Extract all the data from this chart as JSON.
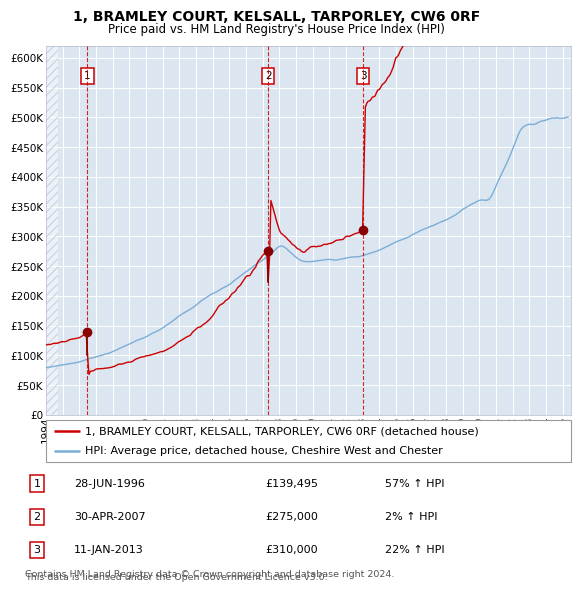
{
  "title": "1, BRAMLEY COURT, KELSALL, TARPORLEY, CW6 0RF",
  "subtitle": "Price paid vs. HM Land Registry's House Price Index (HPI)",
  "legend_line1": "1, BRAMLEY COURT, KELSALL, TARPORLEY, CW6 0RF (detached house)",
  "legend_line2": "HPI: Average price, detached house, Cheshire West and Chester",
  "footer1": "Contains HM Land Registry data © Crown copyright and database right 2024.",
  "footer2": "This data is licensed under the Open Government Licence v3.0.",
  "transactions": [
    {
      "num": 1,
      "date": "28-JUN-1996",
      "price": 139495,
      "price_str": "£139,495",
      "pct": "57%",
      "dir": "↑"
    },
    {
      "num": 2,
      "date": "30-APR-2007",
      "price": 275000,
      "price_str": "£275,000",
      "pct": "2%",
      "dir": "↑"
    },
    {
      "num": 3,
      "date": "11-JAN-2013",
      "price": 310000,
      "price_str": "£310,000",
      "pct": "22%",
      "dir": "↑"
    }
  ],
  "transaction_dates_decimal": [
    1996.49,
    2007.33,
    2013.03
  ],
  "transaction_prices": [
    139495,
    275000,
    310000
  ],
  "ylim": [
    0,
    620000
  ],
  "yticks": [
    0,
    50000,
    100000,
    150000,
    200000,
    250000,
    300000,
    350000,
    400000,
    450000,
    500000,
    550000,
    600000
  ],
  "ytick_labels": [
    "£0",
    "£50K",
    "£100K",
    "£150K",
    "£200K",
    "£250K",
    "£300K",
    "£350K",
    "£400K",
    "£450K",
    "£500K",
    "£550K",
    "£600K"
  ],
  "xlim_start": 1994.0,
  "xlim_end": 2025.5,
  "xticks": [
    1994,
    1995,
    1996,
    1997,
    1998,
    1999,
    2000,
    2001,
    2002,
    2003,
    2004,
    2005,
    2006,
    2007,
    2008,
    2009,
    2010,
    2011,
    2012,
    2013,
    2014,
    2015,
    2016,
    2017,
    2018,
    2019,
    2020,
    2021,
    2022,
    2023,
    2024,
    2025
  ],
  "line_color_red": "#cc0000",
  "line_color_blue": "#7aaed6",
  "point_color": "#880000",
  "vline_color": "#cc0000",
  "bg_color": "#dce6f1",
  "grid_color": "#ffffff",
  "box_color": "#cc0000",
  "title_fontsize": 10,
  "subtitle_fontsize": 8.5,
  "tick_fontsize": 7.5,
  "legend_fontsize": 8,
  "table_fontsize": 8,
  "footer_fontsize": 6.8
}
